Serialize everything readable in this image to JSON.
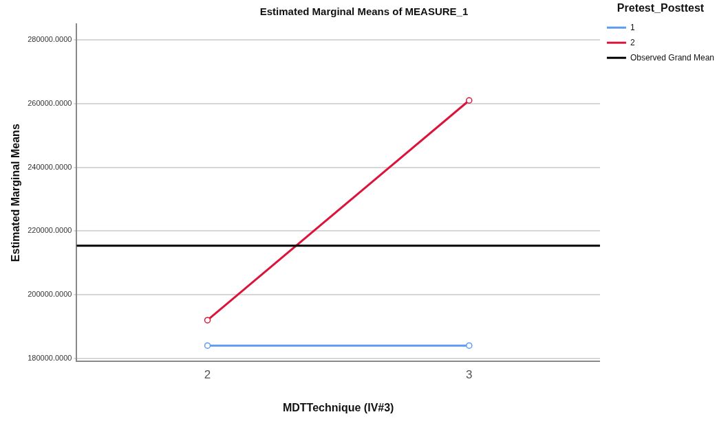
{
  "chart_data": {
    "type": "line",
    "title": "Estimated Marginal Means of MEASURE_1",
    "xlabel": "MDTTechnique (IV#3)",
    "ylabel": "Estimated Marginal Means",
    "legend_title": "Pretest_Posttest",
    "categories": [
      "2",
      "3"
    ],
    "series": [
      {
        "name": "1",
        "color": "#5b9bf0",
        "values": [
          184000,
          184000
        ]
      },
      {
        "name": "2",
        "color": "#dc143c",
        "values": [
          192000,
          261000
        ]
      }
    ],
    "ref_lines": [
      {
        "axis": "y",
        "value": 215400,
        "label": "Observed Grand Mean",
        "color": "#000000"
      }
    ],
    "ylim": [
      179000,
      285000
    ],
    "yticks": [
      {
        "value": 180000,
        "label": "180000.0000"
      },
      {
        "value": 200000,
        "label": "200000.0000"
      },
      {
        "value": 220000,
        "label": "220000.0000"
      },
      {
        "value": 240000,
        "label": "240000.0000"
      },
      {
        "value": 260000,
        "label": "260000.0000"
      },
      {
        "value": 280000,
        "label": "280000.0000"
      }
    ],
    "grid": "y",
    "legend": "top right",
    "marker": "circle",
    "line_style": "solid"
  }
}
